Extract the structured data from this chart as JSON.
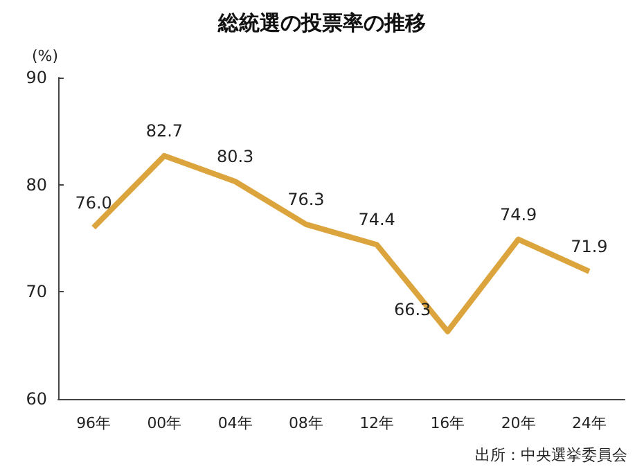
{
  "chart_data": {
    "type": "line",
    "title": "総統選の投票率の推移",
    "ylabel": "(%)",
    "categories": [
      "96年",
      "00年",
      "04年",
      "08年",
      "12年",
      "16年",
      "20年",
      "24年"
    ],
    "series": [
      {
        "color": "#dba43c",
        "values": [
          76.0,
          82.7,
          80.3,
          76.3,
          74.4,
          66.3,
          74.9,
          71.9
        ],
        "value_labels": [
          "76.0",
          "82.7",
          "80.3",
          "76.3",
          "74.4",
          "66.3",
          "74.9",
          "71.9"
        ]
      }
    ],
    "ylim": [
      60,
      90
    ],
    "yticks": [
      60,
      70,
      80,
      90
    ],
    "grid": false,
    "marker": "none",
    "line_style": "solid",
    "annotations": [
      "出所：中央選挙委員会"
    ]
  }
}
